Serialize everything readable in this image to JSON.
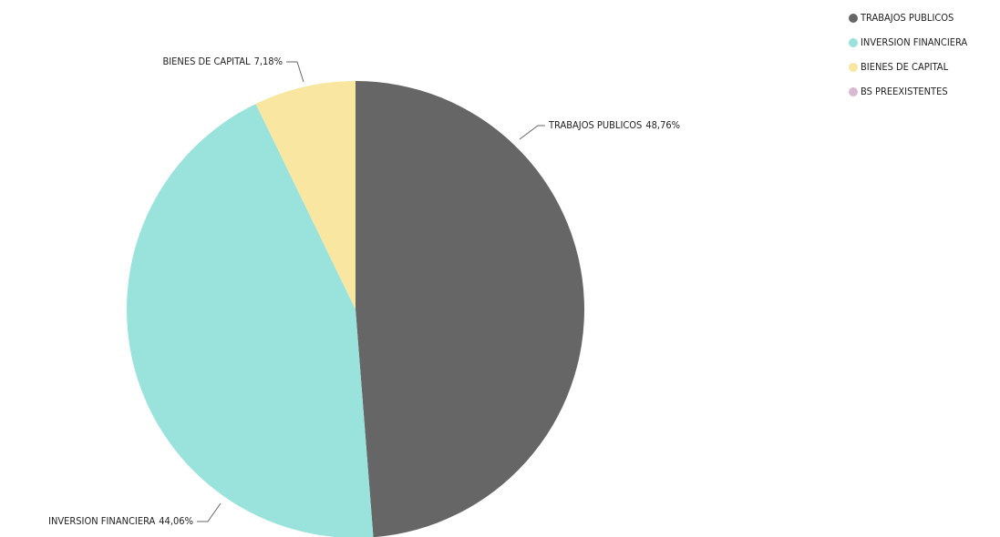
{
  "chart_data": {
    "type": "pie",
    "categories": [
      "TRABAJOS PUBLICOS",
      "INVERSION FINANCIERA",
      "BIENES DE CAPITAL",
      "BS PREEXISTENTES"
    ],
    "values": [
      48.76,
      44.06,
      7.18,
      0
    ],
    "value_labels": [
      "48,76%",
      "44,06%",
      "7,18%",
      null
    ],
    "colors": [
      "#666666",
      "#99e3dc",
      "#f9e6a0",
      "#d9b8d4"
    ],
    "legend": "top-right"
  }
}
